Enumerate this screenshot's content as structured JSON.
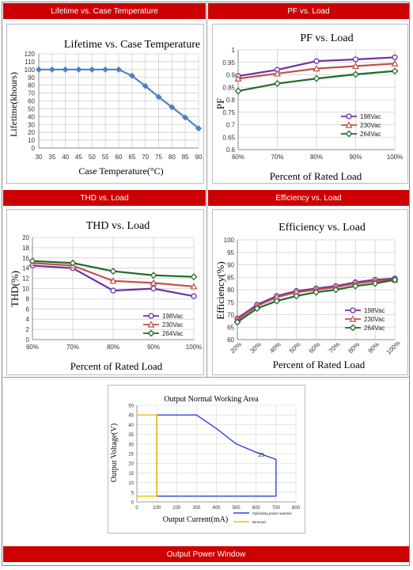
{
  "headers": {
    "lifetime": "Lifetime vs. Case Temperature",
    "pf": "PF vs. Load",
    "thd": "THD vs. Load",
    "efficiency": "Efficiency vs. Load",
    "window": "Output Power Window"
  },
  "colors": {
    "header_bg": "#cc0000",
    "series_198": "#7030a0",
    "series_230": "#c0504d",
    "series_264": "#1e6b2e",
    "lifetime_line": "#4f81bd",
    "window_operating": "#3344cc",
    "window_derated": "#f0c000"
  },
  "chart_data": [
    {
      "id": "lifetime",
      "type": "line",
      "title": "Lifetime vs. Case Temperature",
      "xlabel": "Case Temperature(°C)",
      "ylabel": "Lifetime(khours)",
      "x": [
        30,
        35,
        40,
        45,
        50,
        55,
        60,
        65,
        70,
        75,
        80,
        85,
        90
      ],
      "x_ticks": [
        "30",
        "35",
        "40",
        "45",
        "50",
        "55",
        "60",
        "65",
        "70",
        "75",
        "80",
        "85",
        "90"
      ],
      "y_ticks": [
        "0",
        "10",
        "20",
        "30",
        "40",
        "50",
        "60",
        "70",
        "80",
        "90",
        "100",
        "110",
        "120"
      ],
      "ylim": [
        0,
        120
      ],
      "grid": true,
      "series": [
        {
          "values": [
            100,
            100,
            100,
            100,
            100,
            100,
            100,
            92,
            79,
            65,
            52,
            39,
            25
          ]
        }
      ]
    },
    {
      "id": "pf",
      "type": "line",
      "title": "PF vs. Load",
      "xlabel": "Percent of Rated Load",
      "ylabel": "PF",
      "categories": [
        "60%",
        "70%",
        "80%",
        "90%",
        "100%"
      ],
      "y_ticks": [
        "0.6",
        "0.65",
        "0.7",
        "0.75",
        "0.8",
        "0.85",
        "0.9",
        "0.95",
        "1"
      ],
      "ylim": [
        0.6,
        1
      ],
      "grid": true,
      "legend": "bottom-right",
      "series": [
        {
          "name": "198Vac",
          "values": [
            0.895,
            0.92,
            0.955,
            0.962,
            0.97
          ]
        },
        {
          "name": "230Vac",
          "values": [
            0.885,
            0.905,
            0.925,
            0.935,
            0.945
          ]
        },
        {
          "name": "264Vac",
          "values": [
            0.835,
            0.865,
            0.885,
            0.902,
            0.915
          ]
        }
      ]
    },
    {
      "id": "thd",
      "type": "line",
      "title": "THD vs. Load",
      "xlabel": "Percent of Rated Load",
      "ylabel": "THD(%)",
      "categories": [
        "60%",
        "70%",
        "80%",
        "90%",
        "100%"
      ],
      "y_ticks": [
        "0",
        "2",
        "4",
        "6",
        "8",
        "10",
        "12",
        "14",
        "16",
        "18",
        "20"
      ],
      "ylim": [
        0,
        20
      ],
      "grid": true,
      "legend": "bottom-right",
      "series": [
        {
          "name": "198Vac",
          "values": [
            14.5,
            14,
            9.6,
            10,
            8.5
          ]
        },
        {
          "name": "230Vac",
          "values": [
            15,
            14.5,
            11.5,
            11.1,
            10.4
          ]
        },
        {
          "name": "264Vac",
          "values": [
            15.4,
            15,
            13.4,
            12.6,
            12.3
          ]
        }
      ]
    },
    {
      "id": "efficiency",
      "type": "line",
      "title": "Efficiency vs. Load",
      "xlabel": "Percent of Rated Load",
      "ylabel": "Efficiency(%)",
      "categories": [
        "20%",
        "30%",
        "40%",
        "50%",
        "60%",
        "70%",
        "80%",
        "90%",
        "100%"
      ],
      "y_ticks": [
        "60",
        "65",
        "70",
        "75",
        "80",
        "85",
        "90",
        "95",
        "100"
      ],
      "ylim": [
        60,
        100
      ],
      "grid": true,
      "legend": "bottom-right",
      "series": [
        {
          "name": "198Vac",
          "values": [
            68.5,
            74,
            77.5,
            79.5,
            80.5,
            81.5,
            83,
            84,
            84.5
          ]
        },
        {
          "name": "230Vac",
          "values": [
            68,
            73.5,
            77,
            79,
            80,
            81,
            82.5,
            83.5,
            84
          ]
        },
        {
          "name": "264Vac",
          "values": [
            67,
            72.5,
            75.5,
            77.5,
            79,
            80,
            81.5,
            82.5,
            84
          ]
        }
      ]
    },
    {
      "id": "window",
      "type": "line",
      "title": "Output Normal Working Area",
      "xlabel": "Output Current(mA)",
      "ylabel": "Output Voltage(V)",
      "x_ticks": [
        "0",
        "100",
        "200",
        "300",
        "400",
        "500",
        "600",
        "700",
        "800"
      ],
      "y_ticks": [
        "0",
        "5",
        "10",
        "15",
        "20",
        "25",
        "30",
        "35",
        "40",
        "45",
        "50"
      ],
      "xlim": [
        0,
        800
      ],
      "ylim": [
        0,
        50
      ],
      "grid": true,
      "annotation": "25",
      "series": [
        {
          "name": "Operating power window",
          "x": [
            100,
            100,
            300,
            400,
            500,
            600,
            700,
            700,
            100
          ],
          "values": [
            3,
            45,
            45,
            38,
            30,
            25.7,
            22,
            3,
            3
          ]
        },
        {
          "name": "Dimmed",
          "x": [
            0,
            100,
            100,
            0
          ],
          "values": [
            45,
            45,
            3,
            3
          ]
        }
      ]
    }
  ]
}
